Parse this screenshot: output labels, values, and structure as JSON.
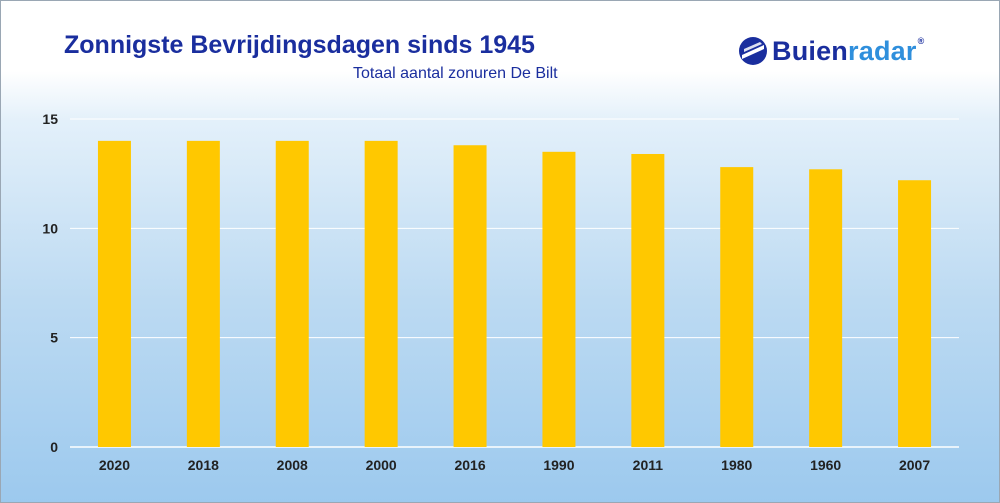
{
  "header": {
    "title": "Zonnigste Bevrijdingsdagen sinds 1945",
    "subtitle": "Totaal aantal zonuren De Bilt"
  },
  "logo": {
    "text_part1": "Buien",
    "text_part2": "radar",
    "registered": "®",
    "icon": "buienradar-logo-icon"
  },
  "colors": {
    "bar": "#ffc800",
    "title": "#1a2e9e",
    "gridline": "#ffffff"
  },
  "chart_data": {
    "type": "bar",
    "title": "Zonnigste Bevrijdingsdagen sinds 1945",
    "subtitle": "Totaal aantal zonuren De Bilt",
    "xlabel": "",
    "ylabel": "",
    "categories": [
      "2020",
      "2018",
      "2008",
      "2000",
      "2016",
      "1990",
      "2011",
      "1980",
      "1960",
      "2007"
    ],
    "values": [
      14.0,
      14.0,
      14.0,
      14.0,
      13.8,
      13.5,
      13.4,
      12.8,
      12.7,
      12.2
    ],
    "ylim": [
      0,
      15
    ],
    "yticks": [
      0,
      5,
      10,
      15
    ],
    "grid": true,
    "legend": "none"
  }
}
